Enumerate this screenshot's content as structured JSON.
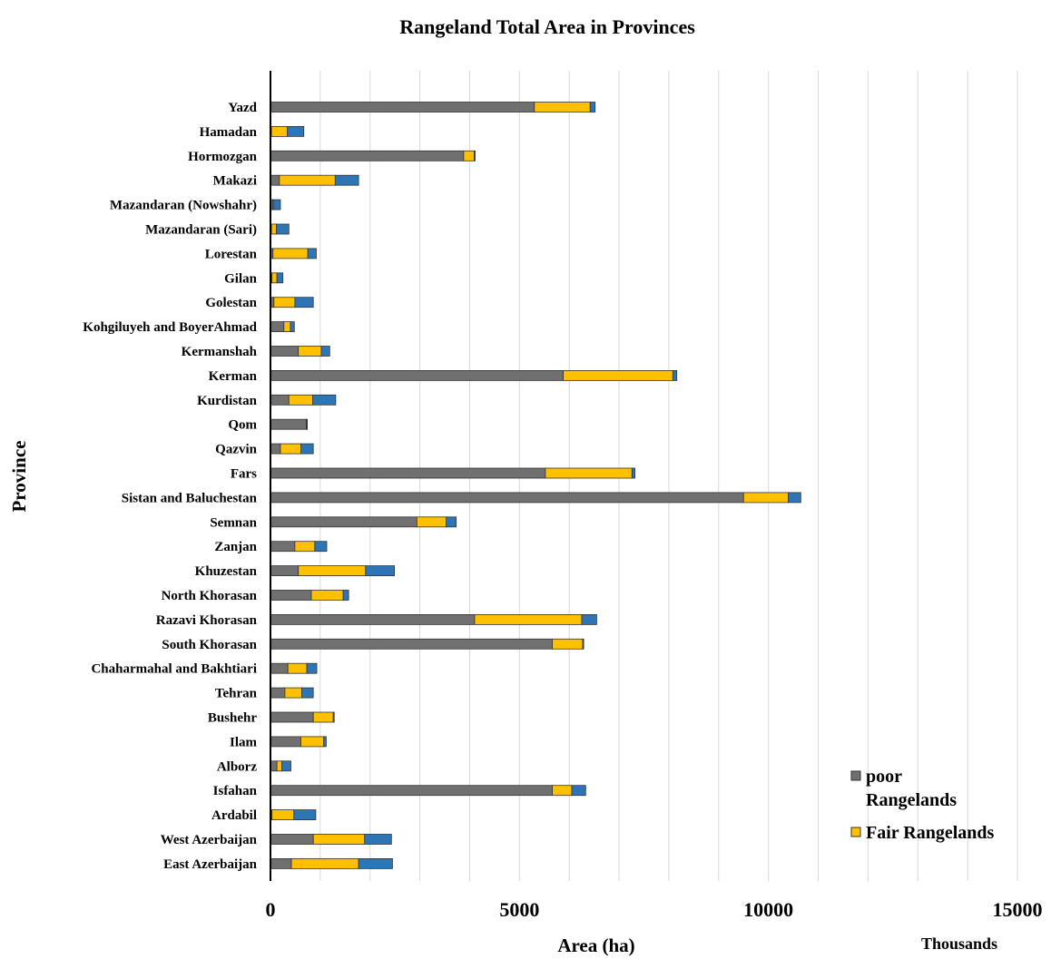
{
  "chart_data": {
    "type": "bar",
    "orientation": "horizontal",
    "stacked": true,
    "title": "Rangeland Total Area in Provinces",
    "xlabel": "Area (ha)",
    "ylabel": "Province",
    "x_units_label": "Thousands",
    "xlim": [
      0,
      15000
    ],
    "x_ticks": [
      0,
      5000,
      10000,
      15000
    ],
    "x_tick_labels": [
      "0",
      "5000",
      "10000",
      "15000"
    ],
    "gridlines": "vertical",
    "legend_position": "right",
    "categories": [
      "Yazd",
      "Hamadan",
      "Hormozgan",
      "Makazi",
      "Mazandaran (Nowshahr)",
      "Mazandaran (Sari)",
      "Lorestan",
      "Gilan",
      "Golestan",
      "Kohgiluyeh and BoyerAhmad",
      "Kermanshah",
      "Kerman",
      "Kurdistan",
      "Qom",
      "Qazvin",
      "Fars",
      "Sistan and Baluchestan",
      "Semnan",
      "Zanjan",
      "Khuzestan",
      "North Khorasan",
      "Razavi Khorasan",
      "South Khorasan",
      "Chaharmahal and Bakhtiari",
      "Tehran",
      "Bushehr",
      "Ilam",
      "Alborz",
      "Isfahan",
      "Ardabil",
      "West Azerbaijan",
      "East Azerbaijan"
    ],
    "series": [
      {
        "name": "poor Rangelands",
        "color": "#707070",
        "values": [
          5300,
          20,
          3880,
          180,
          50,
          20,
          50,
          30,
          70,
          270,
          560,
          5880,
          370,
          720,
          200,
          5520,
          9500,
          2940,
          490,
          560,
          820,
          4100,
          5660,
          350,
          290,
          860,
          610,
          130,
          5660,
          30,
          860,
          420
        ]
      },
      {
        "name": "Fair Rangelands",
        "color": "#ffc000",
        "values": [
          1120,
          320,
          210,
          1120,
          20,
          100,
          700,
          100,
          420,
          130,
          460,
          2200,
          480,
          10,
          410,
          1740,
          900,
          590,
          400,
          1350,
          640,
          2150,
          610,
          380,
          340,
          400,
          460,
          100,
          390,
          440,
          1030,
          1350
        ]
      },
      {
        "name": "",
        "color": "#2e75b6",
        "values": [
          100,
          330,
          20,
          470,
          130,
          250,
          170,
          120,
          370,
          80,
          170,
          80,
          460,
          10,
          250,
          60,
          250,
          200,
          240,
          580,
          110,
          300,
          20,
          200,
          230,
          20,
          50,
          180,
          280,
          440,
          540,
          680
        ]
      }
    ]
  }
}
